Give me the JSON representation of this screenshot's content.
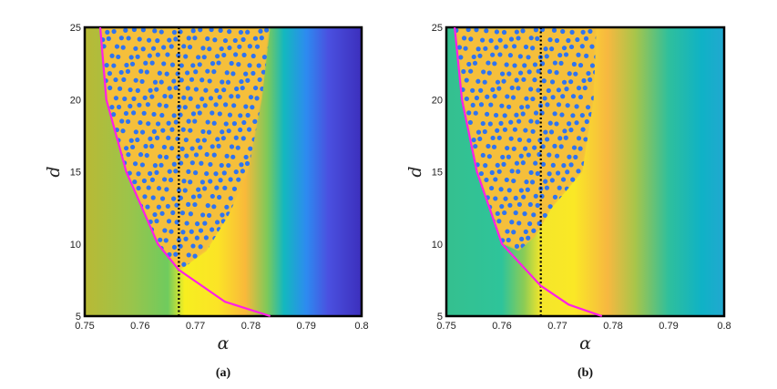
{
  "chart_data": [
    {
      "type": "heatmap",
      "panel_label": "(a)",
      "xlabel": "α",
      "ylabel": "d",
      "xlim": [
        0.75,
        0.8
      ],
      "ylim": [
        5,
        25
      ],
      "xticks": [
        "0.75",
        "0.76",
        "0.77",
        "0.78",
        "0.79",
        "0.8"
      ],
      "yticks": [
        "5",
        "10",
        "15",
        "20",
        "25"
      ],
      "vertical_dotted_line_alpha": 0.767,
      "magenta_curve": [
        [
          0.7528,
          25
        ],
        [
          0.7539,
          20
        ],
        [
          0.7575,
          15
        ],
        [
          0.7632,
          10
        ],
        [
          0.767,
          8.2
        ],
        [
          0.7753,
          6
        ],
        [
          0.7835,
          5
        ]
      ],
      "spot_region_right_edge": [
        [
          0.7835,
          25
        ],
        [
          0.782,
          20
        ],
        [
          0.7795,
          15
        ],
        [
          0.776,
          12
        ],
        [
          0.772,
          9.5
        ],
        [
          0.768,
          8.4
        ]
      ],
      "background_colors": [
        {
          "alpha": 0.75,
          "color": "#b9b935"
        },
        {
          "alpha": 0.758,
          "color": "#9cc44a"
        },
        {
          "alpha": 0.765,
          "color": "#6fcb5e"
        },
        {
          "alpha": 0.768,
          "color": "#f7ee20"
        },
        {
          "alpha": 0.774,
          "color": "#fbe426"
        },
        {
          "alpha": 0.779,
          "color": "#f9b93a"
        },
        {
          "alpha": 0.783,
          "color": "#7cc95a"
        },
        {
          "alpha": 0.786,
          "color": "#13b8bf"
        },
        {
          "alpha": 0.79,
          "color": "#2d8bf0"
        },
        {
          "alpha": 0.794,
          "color": "#4a50e0"
        },
        {
          "alpha": 0.8,
          "color": "#3c2fbc"
        }
      ]
    },
    {
      "type": "heatmap",
      "panel_label": "(b)",
      "xlabel": "α",
      "ylabel": "d",
      "xlim": [
        0.75,
        0.8
      ],
      "ylim": [
        5,
        25
      ],
      "xticks": [
        "0.75",
        "0.76",
        "0.77",
        "0.78",
        "0.79",
        "0.8"
      ],
      "yticks": [
        "5",
        "10",
        "15",
        "20",
        "25"
      ],
      "vertical_dotted_line_alpha": 0.767,
      "magenta_curve": [
        [
          0.7515,
          25
        ],
        [
          0.7528,
          20
        ],
        [
          0.7555,
          15
        ],
        [
          0.76,
          10
        ],
        [
          0.767,
          7.1
        ],
        [
          0.772,
          5.8
        ],
        [
          0.778,
          5
        ]
      ],
      "spot_region_right_edge": [
        [
          0.777,
          25
        ],
        [
          0.7765,
          20
        ],
        [
          0.7745,
          15
        ],
        [
          0.769,
          12.5
        ],
        [
          0.766,
          10.5
        ],
        [
          0.763,
          9.5
        ]
      ],
      "background_colors": [
        {
          "alpha": 0.75,
          "color": "#35c08f"
        },
        {
          "alpha": 0.76,
          "color": "#2ec49a"
        },
        {
          "alpha": 0.764,
          "color": "#8ccc55"
        },
        {
          "alpha": 0.767,
          "color": "#f4e62a"
        },
        {
          "alpha": 0.773,
          "color": "#fae826"
        },
        {
          "alpha": 0.779,
          "color": "#f7b840"
        },
        {
          "alpha": 0.784,
          "color": "#a8c54a"
        },
        {
          "alpha": 0.79,
          "color": "#2fbf9c"
        },
        {
          "alpha": 0.796,
          "color": "#0fb2c6"
        },
        {
          "alpha": 0.8,
          "color": "#22a8d0"
        }
      ]
    }
  ],
  "colors": {
    "curve": "#ff1ee6",
    "spot": "#2f74f0",
    "spot_bg": "#f5bf3a"
  }
}
